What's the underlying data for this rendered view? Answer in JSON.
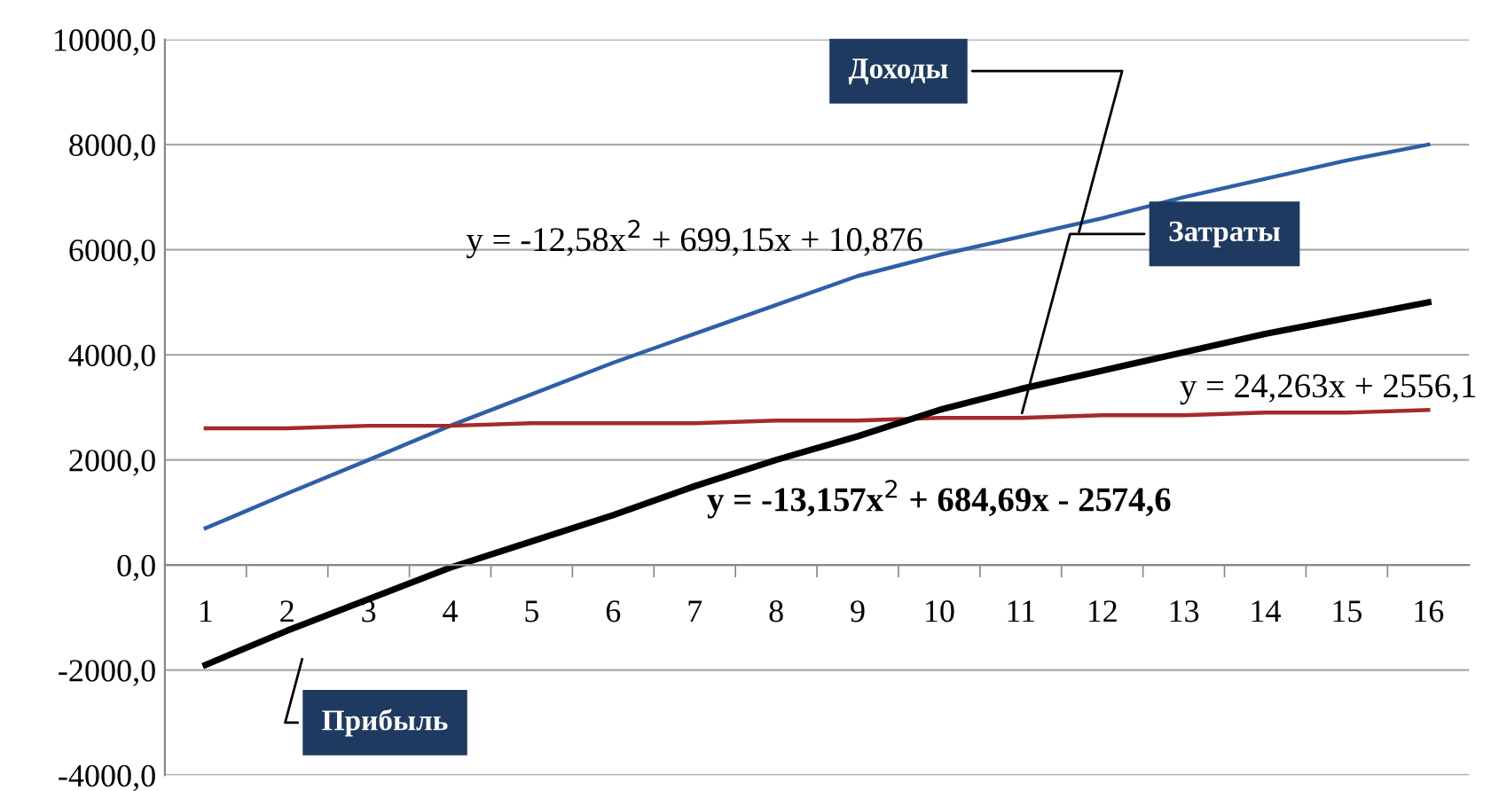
{
  "chart_data": {
    "type": "line",
    "categories": [
      "1",
      "2",
      "3",
      "4",
      "5",
      "6",
      "7",
      "8",
      "9",
      "10",
      "11",
      "12",
      "13",
      "14",
      "15",
      "16"
    ],
    "series": [
      {
        "name": "Доходы",
        "color": "#2e5fa8",
        "values": [
          700,
          1360,
          2000,
          2650,
          3250,
          3850,
          4400,
          4950,
          5500,
          5900,
          6250,
          6600,
          7000,
          7350,
          7700,
          8000
        ]
      },
      {
        "name": "Затраты",
        "color": "#a52a2a",
        "values": [
          2600,
          2600,
          2650,
          2650,
          2700,
          2700,
          2700,
          2750,
          2750,
          2800,
          2800,
          2850,
          2850,
          2900,
          2900,
          2950
        ]
      },
      {
        "name": "Прибыль",
        "color": "#000000",
        "values": [
          -1900,
          -1250,
          -650,
          -50,
          450,
          950,
          1500,
          2000,
          2450,
          2950,
          3350,
          3700,
          4050,
          4400,
          4700,
          5000
        ]
      }
    ],
    "ylim": [
      -4000,
      10000
    ],
    "yticks": [
      {
        "value": -4000,
        "label": "-4000,0"
      },
      {
        "value": -2000,
        "label": "-2000,0"
      },
      {
        "value": 0,
        "label": "0,0"
      },
      {
        "value": 2000,
        "label": "2000,0"
      },
      {
        "value": 4000,
        "label": "4000,0"
      },
      {
        "value": 6000,
        "label": "6000,0"
      },
      {
        "value": 8000,
        "label": "8000,0"
      },
      {
        "value": 10000,
        "label": "10000,0"
      }
    ],
    "grid": "y",
    "legend": false,
    "marker": "none",
    "line_style": "solid",
    "annotations": [
      "y = -12,58x$^{2}$ + 699,15x + 10,876",
      "y = 24,263x + 2556,1",
      "y = -13,157x$^{2}$ + 684,69x - 2574,6"
    ]
  }
}
